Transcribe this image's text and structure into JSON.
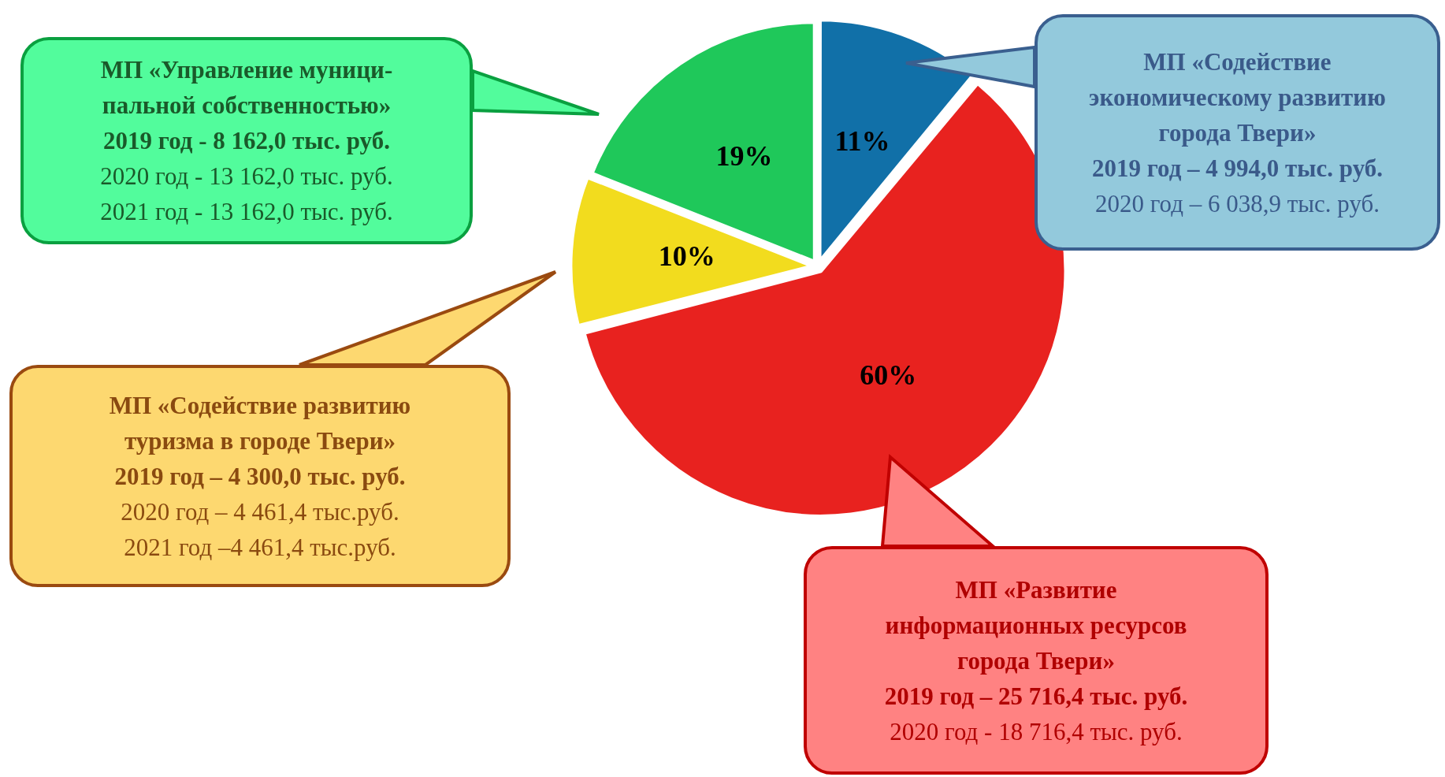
{
  "chart_data": {
    "type": "pie",
    "categories": [
      null,
      null,
      null,
      null
    ],
    "values": [
      11,
      60,
      10,
      19
    ],
    "colors": [
      "#1170a8",
      "#e8221f",
      "#f2dc1e",
      "#1fc85a"
    ],
    "value_labels": [
      "11%",
      "60%",
      "10%",
      "19%"
    ],
    "legend": false,
    "annotations": [
      "МП «Содействие\nэкономическому развитию\nгорода Твери»\n2019 год – 4 994,0 тыс. руб.\n2020 год – 6 038,9 тыс. руб.",
      "МП «Развитие\nинформационных ресурсов\nгорода Твери»\n2019 год – 25 716,4 тыс. руб.\n2020 год - 18 716,4 тыс. руб.",
      "МП «Содействие развитию\nтуризма в городе Твери»\n2019 год – 4 300,0 тыс. руб.\n2020 год – 4 461,4 тыс.руб.\n2021 год –4 461,4 тыс.руб.",
      "МП «Управление муници-\nпальной собственностью»\n2019 год - 8 162,0 тыс. руб.\n2020 год - 13 162,0 тыс. руб.\n2021 год - 13 162,0 тыс. руб."
    ]
  }
}
